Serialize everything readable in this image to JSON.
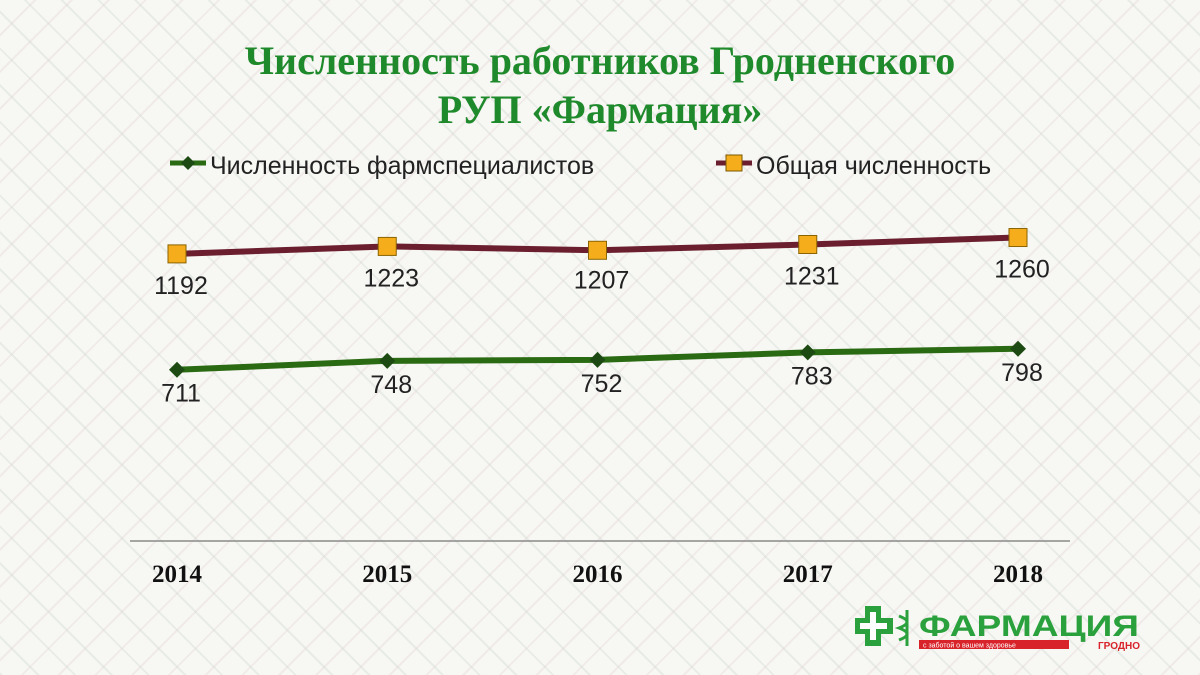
{
  "chart_data": {
    "type": "line",
    "title_lines": [
      "Численность работников Гродненского",
      "РУП «Фармация»"
    ],
    "categories": [
      "2014",
      "2015",
      "2016",
      "2017",
      "2018"
    ],
    "series": [
      {
        "name": "Численность фармспециалистов",
        "values": [
          711,
          748,
          752,
          783,
          798
        ],
        "line_color": "#2a6a12",
        "marker": "diamond",
        "marker_color": "#1d4a12"
      },
      {
        "name": "Общая численность",
        "values": [
          1192,
          1223,
          1207,
          1231,
          1260
        ],
        "line_color": "#6b1f2e",
        "marker": "square",
        "marker_color": "#f6ad1c"
      }
    ],
    "ylim": [
      0,
      1420
    ],
    "xlabel": "",
    "ylabel": "",
    "grid": false,
    "legend_position": "top"
  },
  "logo": {
    "wordmark": "ФАРМАЦИЯ",
    "tagline": "с заботой о вашем здоровье",
    "city": "ГРОДНО",
    "brand_color": "#2aa13c",
    "accent_color": "#d8232a"
  }
}
